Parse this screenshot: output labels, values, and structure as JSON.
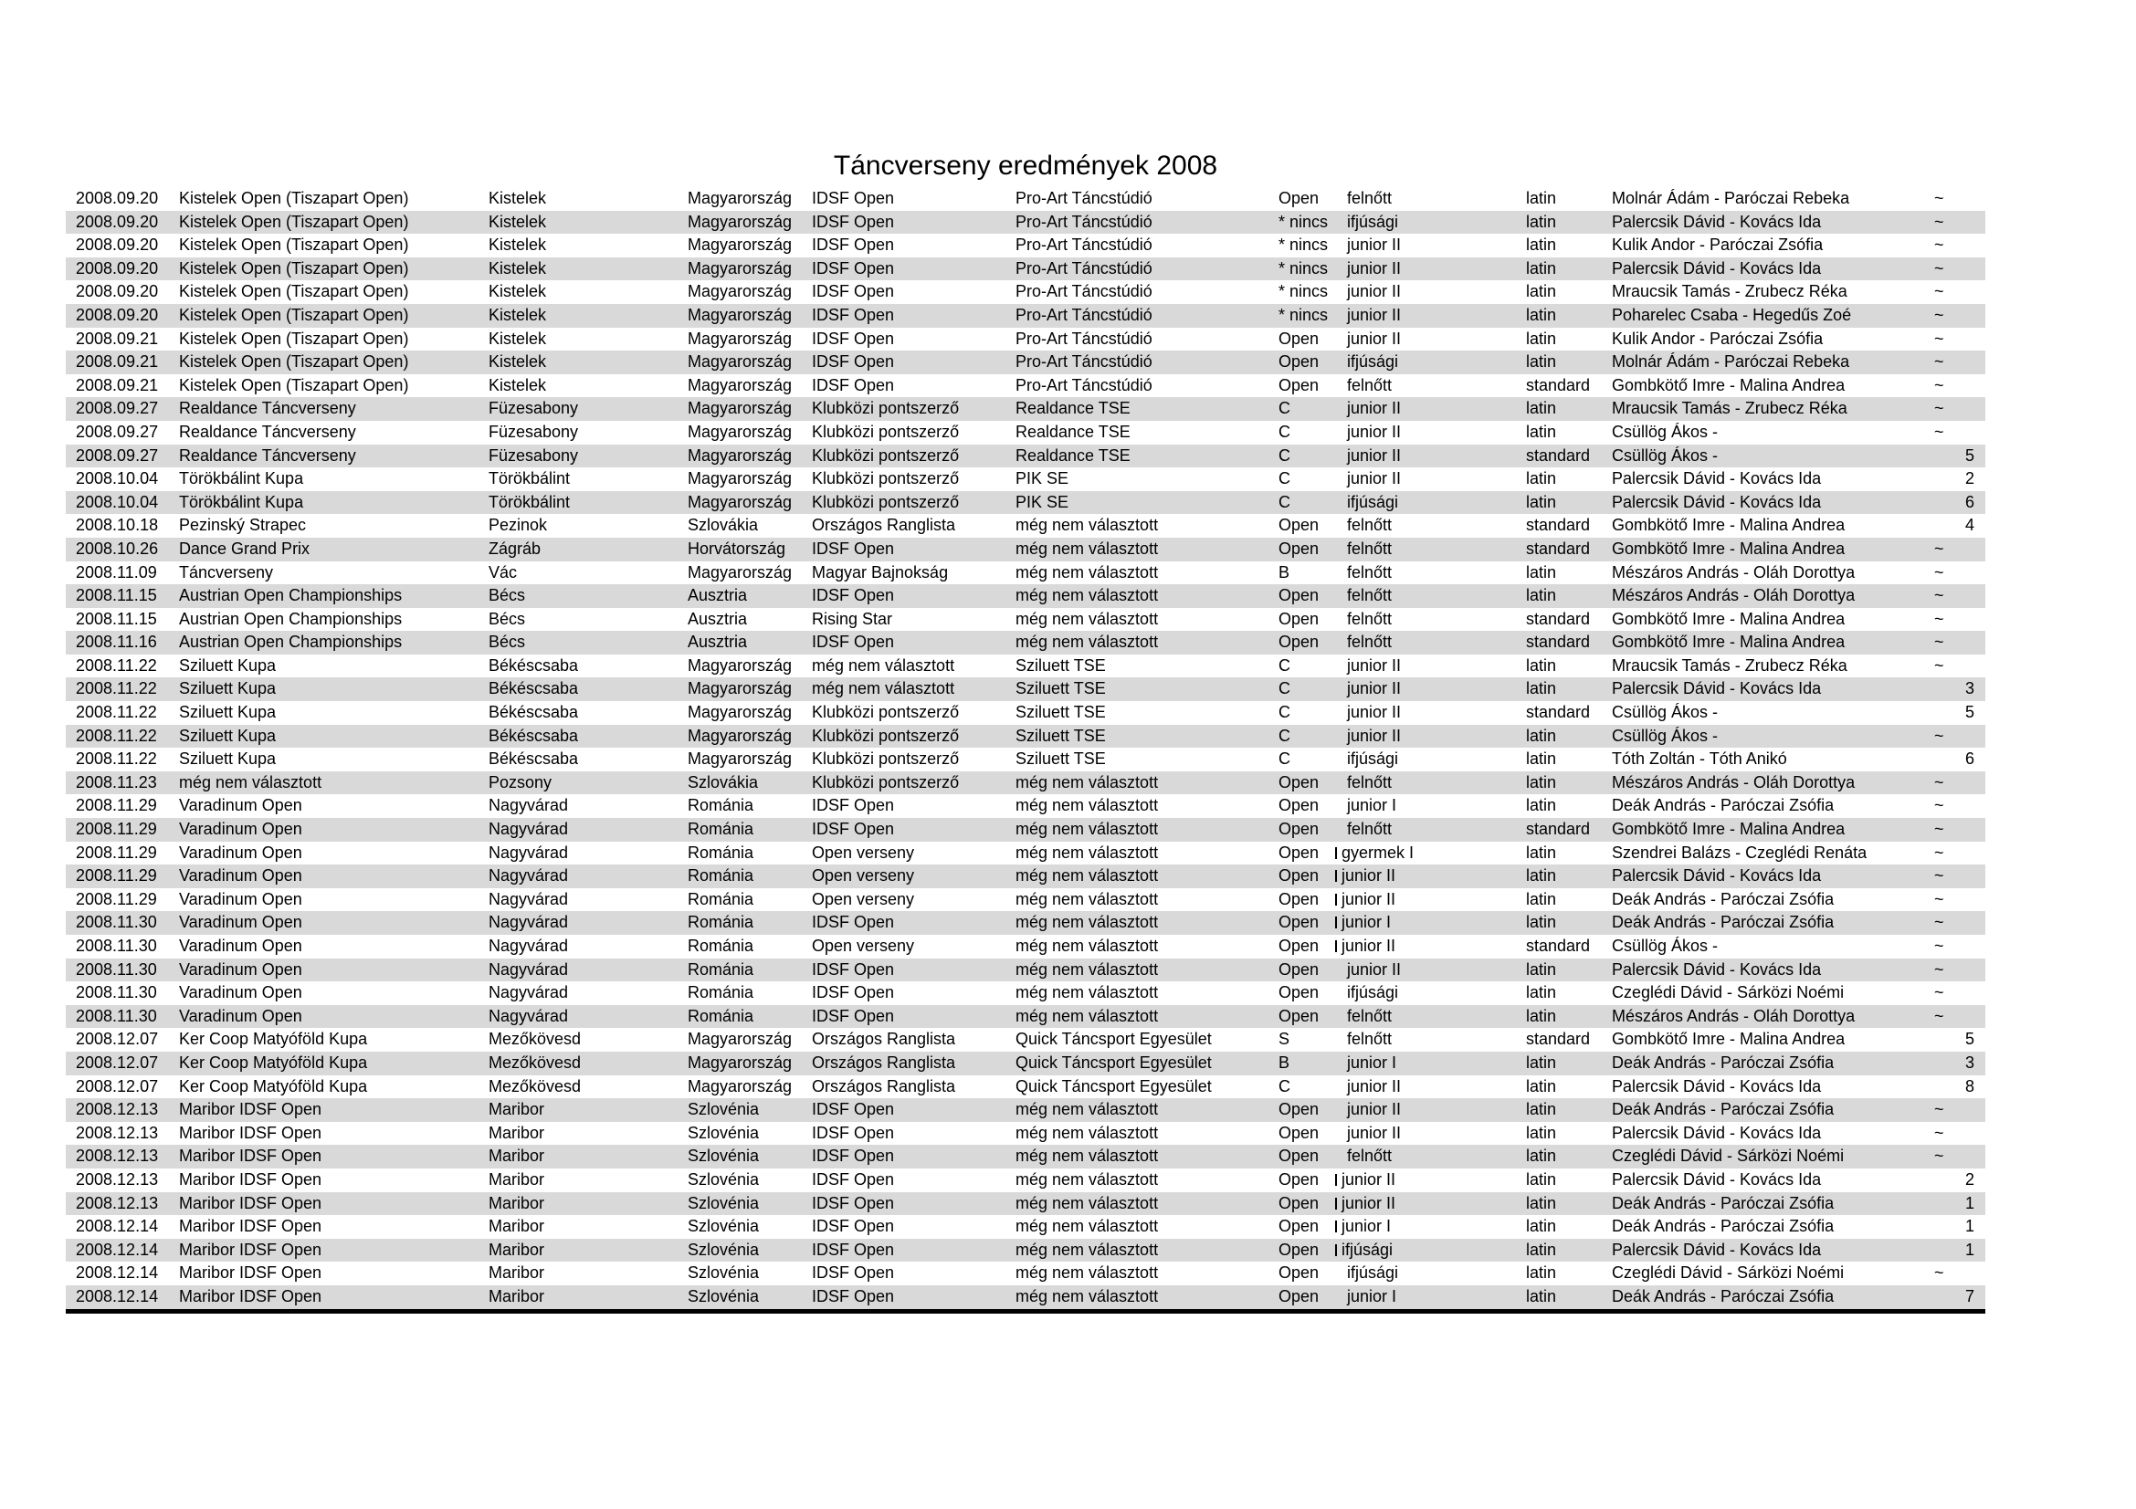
{
  "title": "Táncverseny eredmények 2008",
  "colors": {
    "background": "#ffffff",
    "row_shade": "#d9d9d9",
    "text": "#000000",
    "bottom_rule": "#000000"
  },
  "table": {
    "column_keys": [
      "date",
      "event",
      "city",
      "country",
      "competition_type",
      "club",
      "class",
      "age_group",
      "style",
      "couple",
      "result"
    ],
    "placeholder_result": "~",
    "rows": [
      [
        "2008.09.20",
        "Kistelek Open (Tiszapart Open)",
        "Kistelek",
        "Magyarország",
        "IDSF Open",
        "Pro-Art Táncstúdió",
        "Open",
        "felnőtt",
        "latin",
        "Molnár Ádám - Paróczai Rebeka",
        "~",
        0
      ],
      [
        "2008.09.20",
        "Kistelek Open (Tiszapart Open)",
        "Kistelek",
        "Magyarország",
        "IDSF Open",
        "Pro-Art Táncstúdió",
        "* nincs",
        "ifjúsági",
        "latin",
        "Palercsik Dávid - Kovács Ida",
        "~",
        0
      ],
      [
        "2008.09.20",
        "Kistelek Open (Tiszapart Open)",
        "Kistelek",
        "Magyarország",
        "IDSF Open",
        "Pro-Art Táncstúdió",
        "* nincs",
        "junior II",
        "latin",
        "Kulik Andor - Paróczai Zsófia",
        "~",
        0
      ],
      [
        "2008.09.20",
        "Kistelek Open (Tiszapart Open)",
        "Kistelek",
        "Magyarország",
        "IDSF Open",
        "Pro-Art Táncstúdió",
        "* nincs",
        "junior II",
        "latin",
        "Palercsik Dávid - Kovács Ida",
        "~",
        0
      ],
      [
        "2008.09.20",
        "Kistelek Open (Tiszapart Open)",
        "Kistelek",
        "Magyarország",
        "IDSF Open",
        "Pro-Art Táncstúdió",
        "* nincs",
        "junior II",
        "latin",
        "Mraucsik Tamás - Zrubecz Réka",
        "~",
        0
      ],
      [
        "2008.09.20",
        "Kistelek Open (Tiszapart Open)",
        "Kistelek",
        "Magyarország",
        "IDSF Open",
        "Pro-Art Táncstúdió",
        "* nincs",
        "junior II",
        "latin",
        "Poharelec Csaba - Hegedűs Zoé",
        "~",
        0
      ],
      [
        "2008.09.21",
        "Kistelek Open (Tiszapart Open)",
        "Kistelek",
        "Magyarország",
        "IDSF Open",
        "Pro-Art Táncstúdió",
        "Open",
        "junior II",
        "latin",
        "Kulik Andor - Paróczai Zsófia",
        "~",
        0
      ],
      [
        "2008.09.21",
        "Kistelek Open (Tiszapart Open)",
        "Kistelek",
        "Magyarország",
        "IDSF Open",
        "Pro-Art Táncstúdió",
        "Open",
        "ifjúsági",
        "latin",
        "Molnár Ádám - Paróczai Rebeka",
        "~",
        0
      ],
      [
        "2008.09.21",
        "Kistelek Open (Tiszapart Open)",
        "Kistelek",
        "Magyarország",
        "IDSF Open",
        "Pro-Art Táncstúdió",
        "Open",
        "felnőtt",
        "standard",
        "Gombkötő Imre - Malina Andrea",
        "~",
        0
      ],
      [
        "2008.09.27",
        "Realdance Táncverseny",
        "Füzesabony",
        "Magyarország",
        "Klubközi pontszerző",
        "Realdance TSE",
        "C",
        "junior II",
        "latin",
        "Mraucsik Tamás - Zrubecz Réka",
        "~",
        0
      ],
      [
        "2008.09.27",
        "Realdance Táncverseny",
        "Füzesabony",
        "Magyarország",
        "Klubközi pontszerző",
        "Realdance TSE",
        "C",
        "junior II",
        "latin",
        "Csüllög Ákos -",
        "~",
        0
      ],
      [
        "2008.09.27",
        "Realdance Táncverseny",
        "Füzesabony",
        "Magyarország",
        "Klubközi pontszerző",
        "Realdance TSE",
        "C",
        "junior II",
        "standard",
        "Csüllög Ákos -",
        "5",
        0
      ],
      [
        "2008.10.04",
        "Törökbálint Kupa",
        "Törökbálint",
        "Magyarország",
        "Klubközi pontszerző",
        "PIK SE",
        "C",
        "junior II",
        "latin",
        "Palercsik Dávid - Kovács Ida",
        "2",
        0
      ],
      [
        "2008.10.04",
        "Törökbálint Kupa",
        "Törökbálint",
        "Magyarország",
        "Klubközi pontszerző",
        "PIK SE",
        "C",
        "ifjúsági",
        "latin",
        "Palercsik Dávid - Kovács Ida",
        "6",
        0
      ],
      [
        "2008.10.18",
        "Pezinský Strapec",
        "Pezinok",
        "Szlovákia",
        "Országos Ranglista",
        "még nem választott",
        "Open",
        "felnőtt",
        "standard",
        "Gombkötő Imre - Malina Andrea",
        "4",
        0
      ],
      [
        "2008.10.26",
        "Dance Grand Prix",
        "Zágráb",
        "Horvátország",
        "IDSF Open",
        "még nem választott",
        "Open",
        "felnőtt",
        "standard",
        "Gombkötő Imre - Malina Andrea",
        "~",
        0
      ],
      [
        "2008.11.09",
        "Táncverseny",
        "Vác",
        "Magyarország",
        "Magyar Bajnokság",
        "még nem választott",
        "B",
        "felnőtt",
        "latin",
        "Mészáros András - Oláh Dorottya",
        "~",
        0
      ],
      [
        "2008.11.15",
        "Austrian Open Championships",
        "Bécs",
        "Ausztria",
        "IDSF Open",
        "még nem választott",
        "Open",
        "felnőtt",
        "latin",
        "Mészáros András - Oláh Dorottya",
        "~",
        0
      ],
      [
        "2008.11.15",
        "Austrian Open Championships",
        "Bécs",
        "Ausztria",
        "Rising Star",
        "még nem választott",
        "Open",
        "felnőtt",
        "standard",
        "Gombkötő Imre - Malina Andrea",
        "~",
        0
      ],
      [
        "2008.11.16",
        "Austrian Open Championships",
        "Bécs",
        "Ausztria",
        "IDSF Open",
        "még nem választott",
        "Open",
        "felnőtt",
        "standard",
        "Gombkötő Imre - Malina Andrea",
        "~",
        0
      ],
      [
        "2008.11.22",
        "Sziluett Kupa",
        "Békéscsaba",
        "Magyarország",
        "még nem választott",
        "Sziluett TSE",
        "C",
        "junior II",
        "latin",
        "Mraucsik Tamás - Zrubecz Réka",
        "~",
        0
      ],
      [
        "2008.11.22",
        "Sziluett Kupa",
        "Békéscsaba",
        "Magyarország",
        "még nem választott",
        "Sziluett TSE",
        "C",
        "junior II",
        "latin",
        "Palercsik Dávid - Kovács Ida",
        "3",
        0
      ],
      [
        "2008.11.22",
        "Sziluett Kupa",
        "Békéscsaba",
        "Magyarország",
        "Klubközi pontszerző",
        "Sziluett TSE",
        "C",
        "junior II",
        "standard",
        "Csüllög Ákos -",
        "5",
        0
      ],
      [
        "2008.11.22",
        "Sziluett Kupa",
        "Békéscsaba",
        "Magyarország",
        "Klubközi pontszerző",
        "Sziluett TSE",
        "C",
        "junior II",
        "latin",
        "Csüllög Ákos -",
        "~",
        0
      ],
      [
        "2008.11.22",
        "Sziluett Kupa",
        "Békéscsaba",
        "Magyarország",
        "Klubközi pontszerző",
        "Sziluett TSE",
        "C",
        "ifjúsági",
        "latin",
        "Tóth Zoltán - Tóth Anikó",
        "6",
        0
      ],
      [
        "2008.11.23",
        "még nem választott",
        "Pozsony",
        "Szlovákia",
        "Klubközi pontszerző",
        "még nem választott",
        "Open",
        "felnőtt",
        "latin",
        "Mészáros András - Oláh Dorottya",
        "~",
        0
      ],
      [
        "2008.11.29",
        "Varadinum Open",
        "Nagyvárad",
        "Románia",
        "IDSF Open",
        "még nem választott",
        "Open",
        "junior I",
        "latin",
        "Deák András - Paróczai Zsófia",
        "~",
        0
      ],
      [
        "2008.11.29",
        "Varadinum Open",
        "Nagyvárad",
        "Románia",
        "IDSF Open",
        "még nem választott",
        "Open",
        "felnőtt",
        "standard",
        "Gombkötő Imre - Malina Andrea",
        "~",
        0
      ],
      [
        "2008.11.29",
        "Varadinum Open",
        "Nagyvárad",
        "Románia",
        "Open verseny",
        "még nem választott",
        "Open",
        "gyermek I",
        "latin",
        "Szendrei Balázs - Czeglédi Renáta",
        "~",
        1
      ],
      [
        "2008.11.29",
        "Varadinum Open",
        "Nagyvárad",
        "Románia",
        "Open verseny",
        "még nem választott",
        "Open",
        "junior II",
        "latin",
        "Palercsik Dávid - Kovács Ida",
        "~",
        1
      ],
      [
        "2008.11.29",
        "Varadinum Open",
        "Nagyvárad",
        "Románia",
        "Open verseny",
        "még nem választott",
        "Open",
        "junior II",
        "latin",
        "Deák András - Paróczai Zsófia",
        "~",
        1
      ],
      [
        "2008.11.30",
        "Varadinum Open",
        "Nagyvárad",
        "Románia",
        "IDSF Open",
        "még nem választott",
        "Open",
        "junior I",
        "latin",
        "Deák András - Paróczai Zsófia",
        "~",
        1
      ],
      [
        "2008.11.30",
        "Varadinum Open",
        "Nagyvárad",
        "Románia",
        "Open verseny",
        "még nem választott",
        "Open",
        "junior II",
        "standard",
        "Csüllög Ákos -",
        "~",
        1
      ],
      [
        "2008.11.30",
        "Varadinum Open",
        "Nagyvárad",
        "Románia",
        "IDSF Open",
        "még nem választott",
        "Open",
        "junior II",
        "latin",
        "Palercsik Dávid - Kovács Ida",
        "~",
        0
      ],
      [
        "2008.11.30",
        "Varadinum Open",
        "Nagyvárad",
        "Románia",
        "IDSF Open",
        "még nem választott",
        "Open",
        "ifjúsági",
        "latin",
        "Czeglédi Dávid - Sárközi Noémi",
        "~",
        0
      ],
      [
        "2008.11.30",
        "Varadinum Open",
        "Nagyvárad",
        "Románia",
        "IDSF Open",
        "még nem választott",
        "Open",
        "felnőtt",
        "latin",
        "Mészáros András - Oláh Dorottya",
        "~",
        0
      ],
      [
        "2008.12.07",
        "Ker Coop Matyóföld Kupa",
        "Mezőkövesd",
        "Magyarország",
        "Országos Ranglista",
        "Quick Táncsport Egyesület",
        "S",
        "felnőtt",
        "standard",
        "Gombkötő Imre - Malina Andrea",
        "5",
        0
      ],
      [
        "2008.12.07",
        "Ker Coop Matyóföld Kupa",
        "Mezőkövesd",
        "Magyarország",
        "Országos Ranglista",
        "Quick Táncsport Egyesület",
        "B",
        "junior I",
        "latin",
        "Deák András - Paróczai Zsófia",
        "3",
        0
      ],
      [
        "2008.12.07",
        "Ker Coop Matyóföld Kupa",
        "Mezőkövesd",
        "Magyarország",
        "Országos Ranglista",
        "Quick Táncsport Egyesület",
        "C",
        "junior II",
        "latin",
        "Palercsik Dávid - Kovács Ida",
        "8",
        0
      ],
      [
        "2008.12.13",
        "Maribor IDSF Open",
        "Maribor",
        "Szlovénia",
        "IDSF Open",
        "még nem választott",
        "Open",
        "junior II",
        "latin",
        "Deák András - Paróczai Zsófia",
        "~",
        0
      ],
      [
        "2008.12.13",
        "Maribor IDSF Open",
        "Maribor",
        "Szlovénia",
        "IDSF Open",
        "még nem választott",
        "Open",
        "junior II",
        "latin",
        "Palercsik Dávid - Kovács Ida",
        "~",
        0
      ],
      [
        "2008.12.13",
        "Maribor IDSF Open",
        "Maribor",
        "Szlovénia",
        "IDSF Open",
        "még nem választott",
        "Open",
        "felnőtt",
        "latin",
        "Czeglédi Dávid - Sárközi Noémi",
        "~",
        0
      ],
      [
        "2008.12.13",
        "Maribor IDSF Open",
        "Maribor",
        "Szlovénia",
        "IDSF Open",
        "még nem választott",
        "Open",
        "junior II",
        "latin",
        "Palercsik Dávid - Kovács Ida",
        "2",
        1
      ],
      [
        "2008.12.13",
        "Maribor IDSF Open",
        "Maribor",
        "Szlovénia",
        "IDSF Open",
        "még nem választott",
        "Open",
        "junior II",
        "latin",
        "Deák András - Paróczai Zsófia",
        "1",
        1
      ],
      [
        "2008.12.14",
        "Maribor IDSF Open",
        "Maribor",
        "Szlovénia",
        "IDSF Open",
        "még nem választott",
        "Open",
        "junior I",
        "latin",
        "Deák András - Paróczai Zsófia",
        "1",
        1
      ],
      [
        "2008.12.14",
        "Maribor IDSF Open",
        "Maribor",
        "Szlovénia",
        "IDSF Open",
        "még nem választott",
        "Open",
        "ifjúsági",
        "latin",
        "Palercsik Dávid - Kovács Ida",
        "1",
        1
      ],
      [
        "2008.12.14",
        "Maribor IDSF Open",
        "Maribor",
        "Szlovénia",
        "IDSF Open",
        "még nem választott",
        "Open",
        "ifjúsági",
        "latin",
        "Czeglédi Dávid - Sárközi Noémi",
        "~",
        0
      ],
      [
        "2008.12.14",
        "Maribor IDSF Open",
        "Maribor",
        "Szlovénia",
        "IDSF Open",
        "még nem választott",
        "Open",
        "junior I",
        "latin",
        "Deák András - Paróczai Zsófia",
        "7",
        0
      ]
    ]
  }
}
